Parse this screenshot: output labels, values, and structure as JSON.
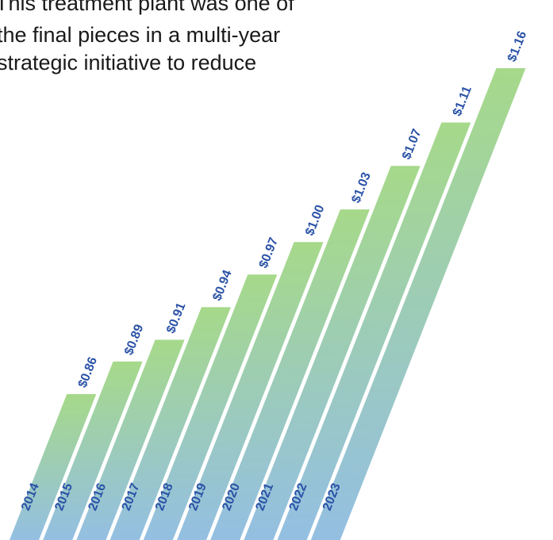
{
  "intro_text": {
    "line1": "This treatment plant was one of",
    "line2": "the final pieces in a multi-year",
    "line3": "strategic initiative to reduce"
  },
  "colors": {
    "bar_top": "#a6d98a",
    "bar_bottom": "#94bfe2",
    "value_label": "#2a52a6",
    "year_label": "#2a52a6",
    "intro_text": "#1a1a1a"
  },
  "chart_data": {
    "type": "bar",
    "title": "",
    "xlabel": "",
    "ylabel": "",
    "categories": [
      "2014",
      "2015",
      "2016",
      "2017",
      "2018",
      "2019",
      "2020",
      "2021",
      "2022",
      "2023"
    ],
    "values": [
      0.86,
      0.89,
      0.91,
      0.94,
      0.97,
      1.0,
      1.03,
      1.07,
      1.11,
      1.16
    ],
    "value_labels": [
      "$0.86",
      "$0.89",
      "$0.91",
      "$0.94",
      "$0.97",
      "$1.00",
      "$1.03",
      "$1.07",
      "$1.11",
      "$1.16"
    ],
    "ylim": [
      0,
      1.16
    ],
    "grid": false,
    "legend": "none"
  }
}
